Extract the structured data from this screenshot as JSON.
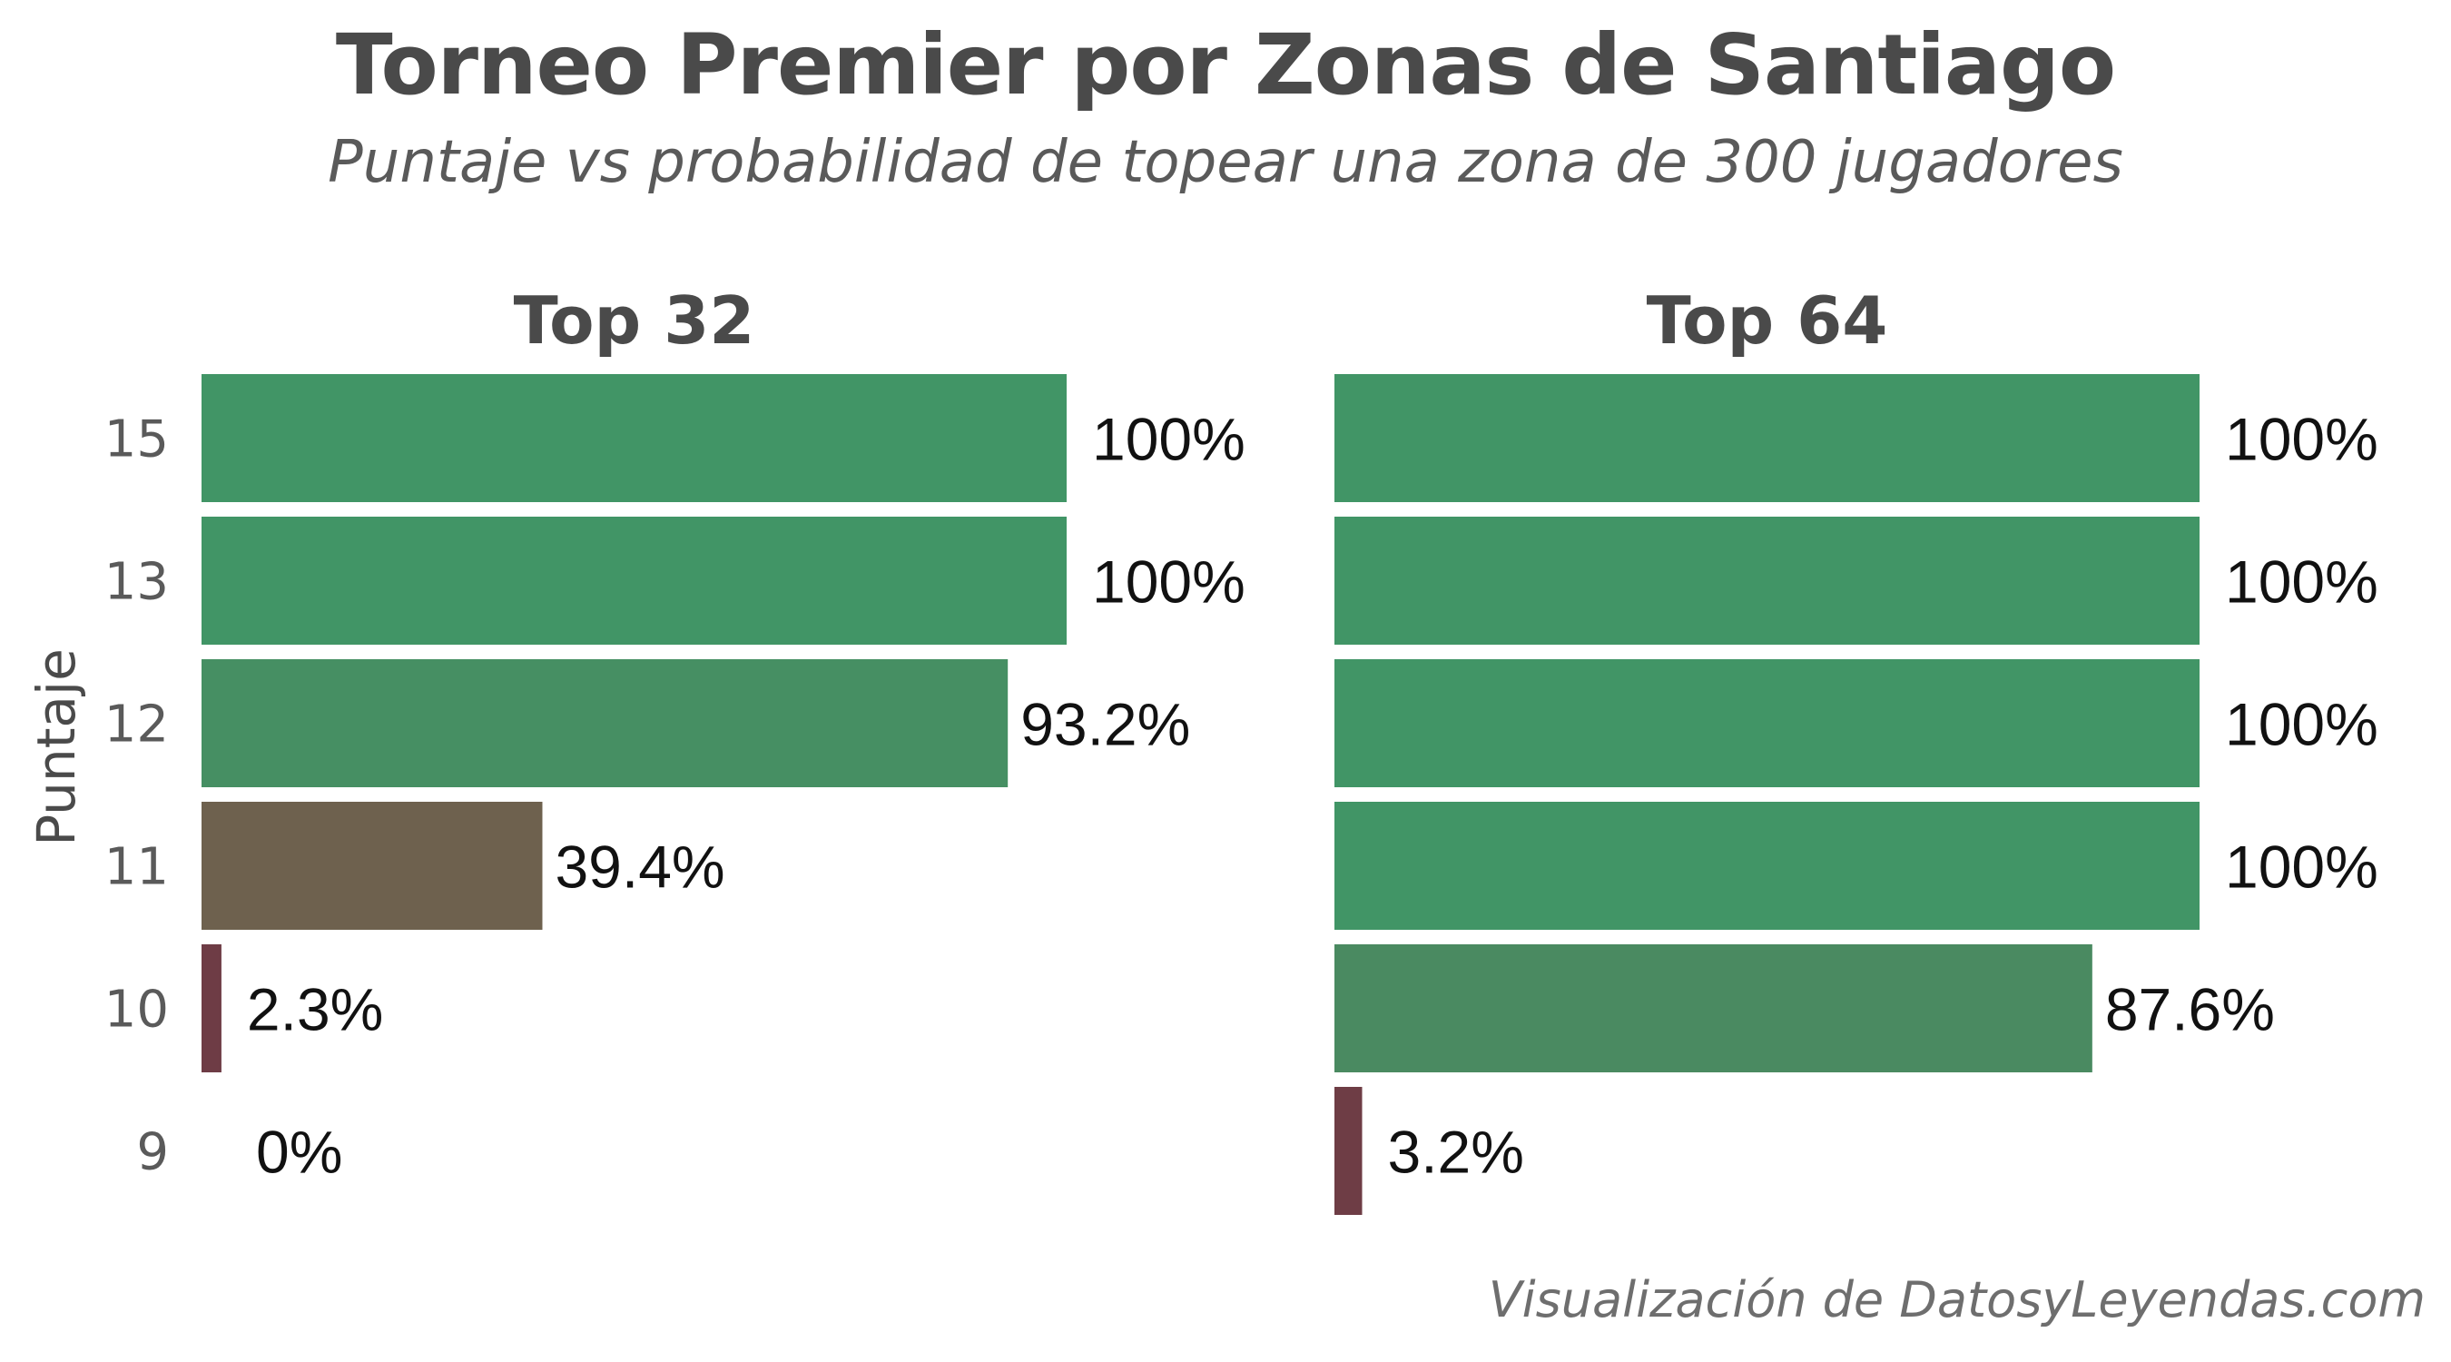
{
  "title": "Torneo Premier por Zonas de Santiago",
  "subtitle": "Puntaje vs probabilidad de topear una zona de 300 jugadores",
  "caption": "Visualización de DatosyLeyendas.com",
  "chart_data": {
    "type": "bar",
    "orientation": "horizontal",
    "ylabel": "Puntaje",
    "categories": [
      "15",
      "13",
      "12",
      "11",
      "10",
      "9"
    ],
    "xlim": [
      0,
      100
    ],
    "grid": false,
    "legend": "none",
    "color_scale": {
      "low": "#6e3a44",
      "mid": "#6e624e",
      "high": "#419566"
    },
    "panels": [
      {
        "title": "Top 32",
        "values": [
          100,
          100,
          93.2,
          39.4,
          2.3,
          0
        ],
        "labels": [
          "100%",
          "100%",
          "93.2%",
          "39.4%",
          "2.3%",
          "0%"
        ]
      },
      {
        "title": "Top 64",
        "values": [
          100,
          100,
          100,
          100,
          87.6,
          3.2
        ],
        "labels": [
          "100%",
          "100%",
          "100%",
          "100%",
          "87.6%",
          "3.2%"
        ]
      }
    ]
  }
}
